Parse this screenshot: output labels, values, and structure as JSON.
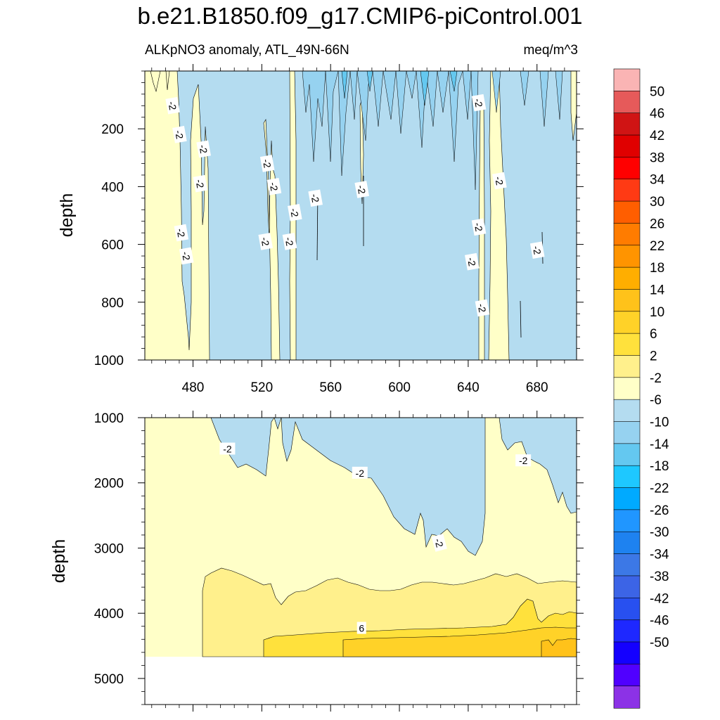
{
  "figure": {
    "title": "b.e21.B1850.f09_g17.CMIP6-piControl.001",
    "subtitle_left": "ALKpNO3 anomaly, ATL_49N-66N",
    "subtitle_right": "meq/m^3"
  },
  "chart_data": [
    {
      "type": "contour",
      "panel": "top",
      "ylabel": "depth",
      "xlim": [
        452,
        703
      ],
      "ylim": [
        1000,
        0
      ],
      "yticks": [
        200,
        400,
        600,
        800,
        1000
      ],
      "xticks": [
        480,
        520,
        560,
        600,
        640,
        680
      ],
      "yaxis_reversed": true,
      "fields": [
        {
          "level": "-6 to -2",
          "regions": "most of the panel between x≈490 and x≈705, full depth"
        },
        {
          "level": "-2 to 2",
          "regions": "x≈452–490 full depth; narrow bands near x≈522–527, 536–538, 644–648, 652–665"
        },
        {
          "level": "-10 to -6",
          "regions": "spiky patches in upper 300 m between x≈555 and x≈640"
        }
      ],
      "contour_labels": [
        {
          "text": "-2",
          "x": 468,
          "depth": 120
        },
        {
          "text": "-2",
          "x": 472,
          "depth": 220
        },
        {
          "text": "-2",
          "x": 486,
          "depth": 270
        },
        {
          "text": "-2",
          "x": 484,
          "depth": 390
        },
        {
          "text": "-2",
          "x": 473,
          "depth": 560
        },
        {
          "text": "-2",
          "x": 476,
          "depth": 640
        },
        {
          "text": "-2",
          "x": 523,
          "depth": 320
        },
        {
          "text": "-2",
          "x": 527,
          "depth": 400
        },
        {
          "text": "-2",
          "x": 522,
          "depth": 590
        },
        {
          "text": "-2",
          "x": 539,
          "depth": 490
        },
        {
          "text": "-2",
          "x": 536,
          "depth": 590
        },
        {
          "text": "-2",
          "x": 551,
          "depth": 440
        },
        {
          "text": "-2",
          "x": 578,
          "depth": 410
        },
        {
          "text": "-2",
          "x": 646,
          "depth": 110
        },
        {
          "text": "-2",
          "x": 658,
          "depth": 380
        },
        {
          "text": "-2",
          "x": 646,
          "depth": 540
        },
        {
          "text": "-2",
          "x": 642,
          "depth": 660
        },
        {
          "text": "-2",
          "x": 648,
          "depth": 820
        },
        {
          "text": "-2",
          "x": 680,
          "depth": 620
        }
      ]
    },
    {
      "type": "contour",
      "panel": "bottom",
      "ylabel": "depth",
      "xlim": [
        452,
        703
      ],
      "ylim": [
        5400,
        1000
      ],
      "yticks": [
        1000,
        2000,
        3000,
        4000,
        5000
      ],
      "yaxis_reversed": true,
      "missing_below_depth": 4620,
      "fields": [
        {
          "level": "-6 to -2",
          "regions": "upper region x≈500–650 down to ~3000 m; x≈670–705 down to ~2450 m"
        },
        {
          "level": "-2 to 2",
          "regions": "background from ~1000 m to ~3500 m"
        },
        {
          "level": "2 to 6",
          "regions": "layer from ~3300–3700 m to ~4350 m"
        },
        {
          "level": "6 to 10",
          "regions": "bottom layer below ~4200–4400 m"
        },
        {
          "level": "10 to 14",
          "regions": "bottom-right corner near x≈690–705, depth ≈4350–4620 m"
        }
      ],
      "contour_labels": [
        {
          "text": "-2",
          "x": 500,
          "depth": 1480
        },
        {
          "text": "-2",
          "x": 577,
          "depth": 1850
        },
        {
          "text": "-2",
          "x": 672,
          "depth": 1660
        },
        {
          "text": "-2",
          "x": 623,
          "depth": 2920
        },
        {
          "text": "6",
          "x": 578,
          "depth": 4230
        }
      ]
    }
  ],
  "colorbar": {
    "labels": [
      "50",
      "46",
      "42",
      "38",
      "34",
      "30",
      "26",
      "22",
      "18",
      "14",
      "10",
      "6",
      "2",
      "-2",
      "-6",
      "-10",
      "-14",
      "-18",
      "-22",
      "-26",
      "-30",
      "-34",
      "-38",
      "-42",
      "-46",
      "-50"
    ],
    "colors": [
      "#fab4b4",
      "#e65a5a",
      "#d01414",
      "#e00000",
      "#ff0000",
      "#ff3a14",
      "#ff5e00",
      "#ff7c00",
      "#ff9400",
      "#ffae00",
      "#ffc21a",
      "#ffd228",
      "#ffe13c",
      "#fff08c",
      "#ffffc8",
      "#b4dcf0",
      "#96d2f0",
      "#64c8f0",
      "#1ec8ff",
      "#00aaff",
      "#2096ff",
      "#1e82f0",
      "#3c78e6",
      "#3c64e6",
      "#2850f0",
      "#1e28ff",
      "#1400ff",
      "#5000ff",
      "#8c32e6"
    ]
  },
  "colors": {
    "band_m2_2": "#ffffc8",
    "band_m6_m2": "#b4dcf0",
    "band_m10_m6": "#96d2f0",
    "band_2_6": "#fff08c",
    "band_6_10": "#ffe13c",
    "band_10_14": "#ffd228",
    "band_14_18": "#ffc21a"
  }
}
